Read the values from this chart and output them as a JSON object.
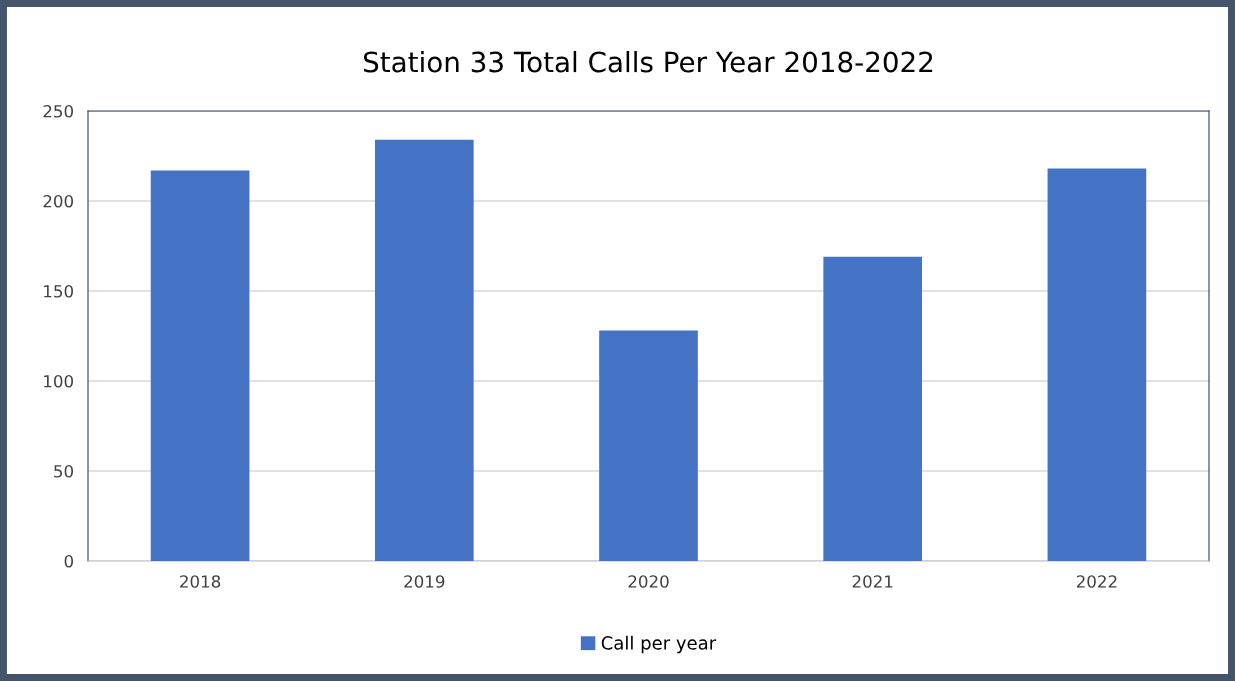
{
  "chart_data": {
    "type": "bar",
    "title": "Station 33 Total Calls Per Year 2018-2022",
    "categories": [
      "2018",
      "2019",
      "2020",
      "2021",
      "2022"
    ],
    "series": [
      {
        "name": "Call per year",
        "color": "#4472c4",
        "values": [
          217,
          234,
          128,
          169,
          218
        ]
      }
    ],
    "ylim": [
      0,
      250
    ],
    "yticks": [
      0,
      50,
      100,
      150,
      200,
      250
    ],
    "grid": "y",
    "legend": "bottom"
  }
}
